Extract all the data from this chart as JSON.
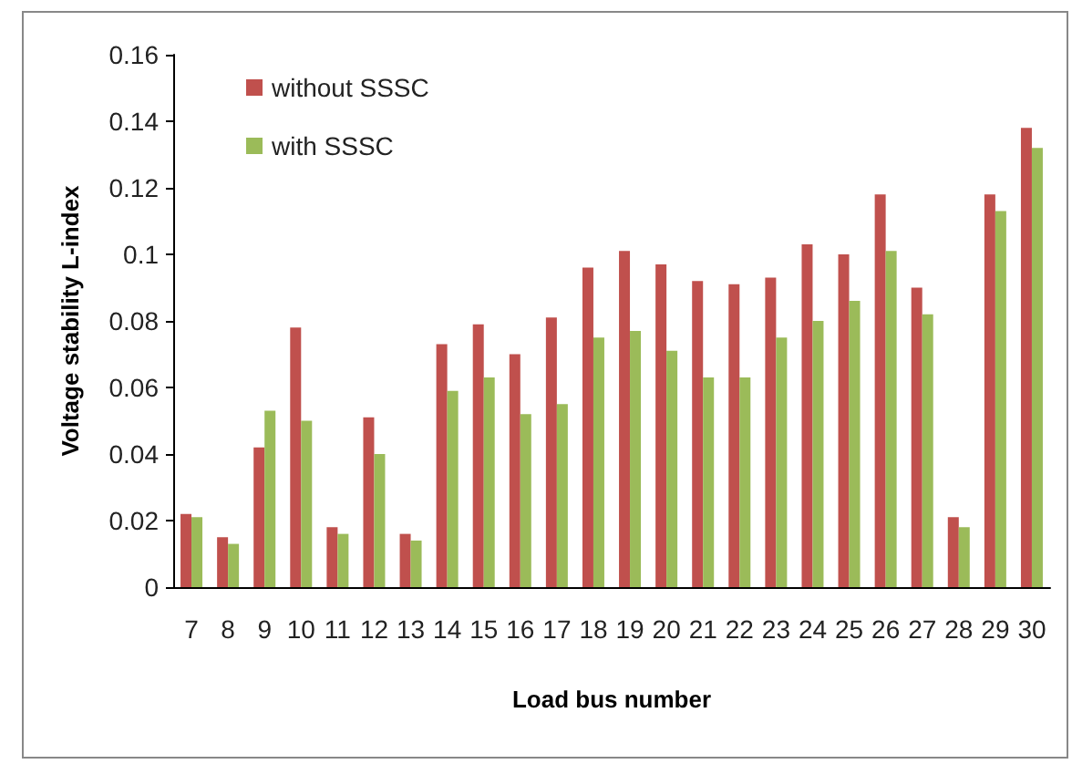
{
  "chart_data": {
    "type": "bar",
    "xlabel": "Load bus number",
    "ylabel": "Voltage stability L-index",
    "categories": [
      "7",
      "8",
      "9",
      "10",
      "11",
      "12",
      "13",
      "14",
      "15",
      "16",
      "17",
      "18",
      "19",
      "20",
      "21",
      "22",
      "23",
      "24",
      "25",
      "26",
      "27",
      "28",
      "29",
      "30"
    ],
    "series": [
      {
        "name": "without SSSC",
        "color": "#c0504d",
        "values": [
          0.022,
          0.015,
          0.042,
          0.078,
          0.018,
          0.051,
          0.016,
          0.073,
          0.079,
          0.07,
          0.081,
          0.096,
          0.101,
          0.097,
          0.092,
          0.091,
          0.093,
          0.103,
          0.1,
          0.118,
          0.09,
          0.021,
          0.118,
          0.138
        ]
      },
      {
        "name": "with SSSC",
        "color": "#9bbb59",
        "values": [
          0.021,
          0.013,
          0.053,
          0.05,
          0.016,
          0.04,
          0.014,
          0.059,
          0.063,
          0.052,
          0.055,
          0.075,
          0.077,
          0.071,
          0.063,
          0.063,
          0.075,
          0.08,
          0.086,
          0.101,
          0.082,
          0.018,
          0.113,
          0.132
        ]
      }
    ],
    "ylim": [
      0,
      0.16
    ],
    "yticks": [
      0,
      0.02,
      0.04,
      0.06,
      0.08,
      0.1,
      0.12,
      0.14,
      0.16
    ],
    "grid": false,
    "legend": "top left"
  }
}
